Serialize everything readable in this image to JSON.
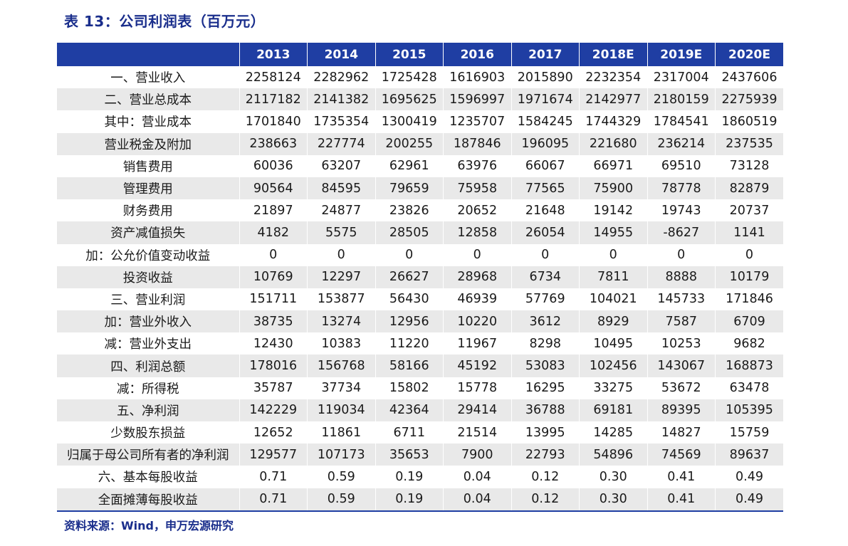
{
  "title": "表 13：公司利润表（百万元）",
  "source": "资料来源：Wind，申万宏源研究",
  "table": {
    "columns": [
      "",
      "2013",
      "2014",
      "2015",
      "2016",
      "2017",
      "2018E",
      "2019E",
      "2020E"
    ],
    "rows": [
      {
        "label": "一、营业收入",
        "values": [
          "2258124",
          "2282962",
          "1725428",
          "1616903",
          "2015890",
          "2232354",
          "2317004",
          "2437606"
        ]
      },
      {
        "label": "二、营业总成本",
        "values": [
          "2117182",
          "2141382",
          "1695625",
          "1596997",
          "1971674",
          "2142977",
          "2180159",
          "2275939"
        ]
      },
      {
        "label": "其中：营业成本",
        "values": [
          "1701840",
          "1735354",
          "1300419",
          "1235707",
          "1584245",
          "1744329",
          "1784541",
          "1860519"
        ]
      },
      {
        "label": "营业税金及附加",
        "values": [
          "238663",
          "227774",
          "200255",
          "187846",
          "196095",
          "221680",
          "236214",
          "237535"
        ]
      },
      {
        "label": "销售费用",
        "values": [
          "60036",
          "63207",
          "62961",
          "63976",
          "66067",
          "66971",
          "69510",
          "73128"
        ]
      },
      {
        "label": "管理费用",
        "values": [
          "90564",
          "84595",
          "79659",
          "75958",
          "77565",
          "75900",
          "78778",
          "82879"
        ]
      },
      {
        "label": "财务费用",
        "values": [
          "21897",
          "24877",
          "23826",
          "20652",
          "21648",
          "19142",
          "19743",
          "20737"
        ]
      },
      {
        "label": "资产减值损失",
        "values": [
          "4182",
          "5575",
          "28505",
          "12858",
          "26054",
          "14955",
          "-8627",
          "1141"
        ]
      },
      {
        "label": "加：公允价值变动收益",
        "values": [
          "0",
          "0",
          "0",
          "0",
          "0",
          "0",
          "0",
          "0"
        ]
      },
      {
        "label": "投资收益",
        "values": [
          "10769",
          "12297",
          "26627",
          "28968",
          "6734",
          "7811",
          "8888",
          "10179"
        ]
      },
      {
        "label": "三、营业利润",
        "values": [
          "151711",
          "153877",
          "56430",
          "46939",
          "57769",
          "104021",
          "145733",
          "171846"
        ]
      },
      {
        "label": "加：营业外收入",
        "values": [
          "38735",
          "13274",
          "12956",
          "10220",
          "3612",
          "8929",
          "7587",
          "6709"
        ]
      },
      {
        "label": "减：营业外支出",
        "values": [
          "12430",
          "10383",
          "11220",
          "11967",
          "8298",
          "10495",
          "10253",
          "9682"
        ]
      },
      {
        "label": "四、利润总额",
        "values": [
          "178016",
          "156768",
          "58166",
          "45192",
          "53083",
          "102456",
          "143067",
          "168873"
        ]
      },
      {
        "label": "减：所得税",
        "values": [
          "35787",
          "37734",
          "15802",
          "15778",
          "16295",
          "33275",
          "53672",
          "63478"
        ]
      },
      {
        "label": "五、净利润",
        "values": [
          "142229",
          "119034",
          "42364",
          "29414",
          "36788",
          "69181",
          "89395",
          "105395"
        ]
      },
      {
        "label": "少数股东损益",
        "values": [
          "12652",
          "11861",
          "6711",
          "21514",
          "13995",
          "14285",
          "14827",
          "15759"
        ]
      },
      {
        "label": "归属于母公司所有者的净利润",
        "values": [
          "129577",
          "107173",
          "35653",
          "7900",
          "22793",
          "54896",
          "74569",
          "89637"
        ]
      },
      {
        "label": "六、基本每股收益",
        "values": [
          "0.71",
          "0.59",
          "0.19",
          "0.04",
          "0.12",
          "0.30",
          "0.41",
          "0.49"
        ]
      },
      {
        "label": "全面摊薄每股收益",
        "values": [
          "0.71",
          "0.59",
          "0.19",
          "0.04",
          "0.12",
          "0.30",
          "0.41",
          "0.49"
        ]
      }
    ]
  }
}
